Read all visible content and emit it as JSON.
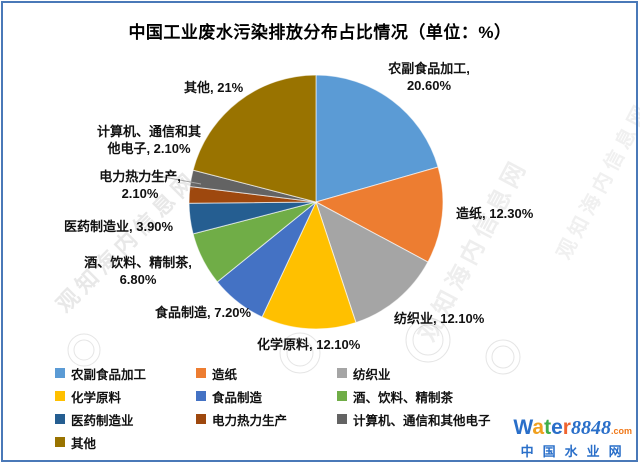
{
  "title": "中国工业废水污染排放分布占比情况（单位：%）",
  "chart_data": {
    "type": "pie",
    "title": "中国工业废水污染排放分布占比情况",
    "unit": "%",
    "start_angle": "top, clockwise",
    "legend_position": "bottom",
    "slices": [
      {
        "name": "农副食品加工",
        "value": 20.6,
        "pct_label": "20.60%",
        "color": "#5B9BD5",
        "callout": [
          "农副食品加工,",
          "20.60%"
        ]
      },
      {
        "name": "造纸",
        "value": 12.3,
        "pct_label": "12.30%",
        "color": "#ED7D31",
        "callout": [
          "造纸, 12.30%"
        ]
      },
      {
        "name": "纺织业",
        "value": 12.1,
        "pct_label": "12.10%",
        "color": "#A5A5A5",
        "callout": [
          "纺织业, 12.10%"
        ]
      },
      {
        "name": "化学原料",
        "value": 12.1,
        "pct_label": "12.10%",
        "color": "#FFC000",
        "callout": [
          "化学原料, 12.10%"
        ]
      },
      {
        "name": "食品制造",
        "value": 7.2,
        "pct_label": "7.20%",
        "color": "#4472C4",
        "callout": [
          "食品制造, 7.20%"
        ]
      },
      {
        "name": "酒、饮料、精制茶",
        "value": 6.8,
        "pct_label": "6.80%",
        "color": "#70AD47",
        "callout": [
          "酒、饮料、精制茶,",
          "6.80%"
        ]
      },
      {
        "name": "医药制造业",
        "value": 3.9,
        "pct_label": "3.90%",
        "color": "#255E91",
        "callout": [
          "医药制造业, 3.90%"
        ]
      },
      {
        "name": "电力热力生产",
        "value": 2.1,
        "pct_label": "2.10%",
        "color": "#9E480E",
        "callout": [
          "电力热力生产,",
          "2.10%"
        ]
      },
      {
        "name": "计算机、通信和其他电子",
        "value": 2.1,
        "pct_label": "2.10%",
        "color": "#636363",
        "callout": [
          "计算机、通信和其",
          "他电子, 2.10%"
        ]
      },
      {
        "name": "其他",
        "value": 21,
        "pct_label": "21%",
        "color": "#997300",
        "callout": [
          "其他, 21%"
        ]
      }
    ]
  },
  "watermark": {
    "text": "观知海内信息网"
  },
  "logo": {
    "letters": [
      {
        "ch": "W",
        "color": "#2a6fc9"
      },
      {
        "ch": "a",
        "color": "#f0a01e"
      },
      {
        "ch": "t",
        "color": "#3fae49"
      },
      {
        "ch": "e",
        "color": "#2a6fc9"
      },
      {
        "ch": "r",
        "color": "#ef6430"
      }
    ],
    "number": "8848",
    "tld": ".com",
    "cn": "中国水业网"
  },
  "colors": {
    "frame_border": "#4a79b8",
    "leader_line": "#a6a6a6"
  }
}
